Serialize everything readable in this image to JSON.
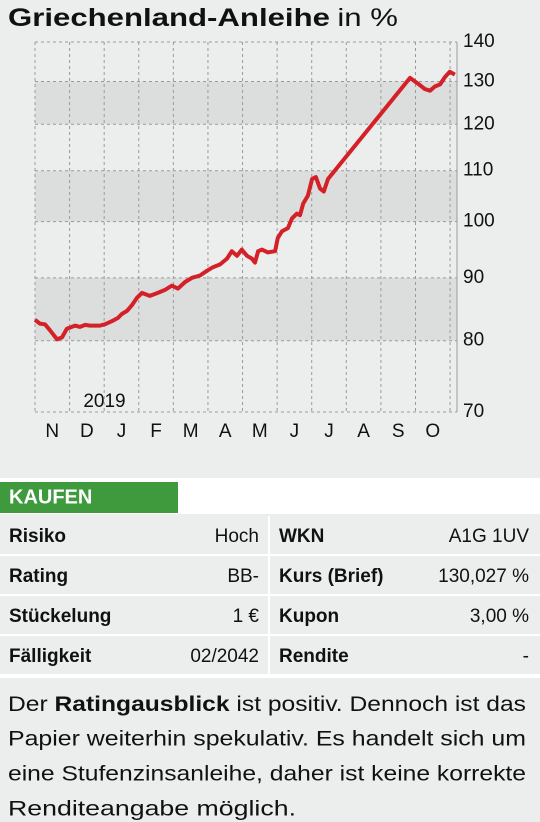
{
  "chart_data": {
    "type": "line",
    "title": "Griechenland-Anleihe",
    "title_unit": "in %",
    "year_label": "2019",
    "x": [
      0,
      0.14,
      0.29,
      0.43,
      0.64,
      0.78,
      0.92,
      1.16,
      1.3,
      1.45,
      1.59,
      1.88,
      2.02,
      2.23,
      2.4,
      2.51,
      2.66,
      2.8,
      2.95,
      3.09,
      3.32,
      3.55,
      3.76,
      3.96,
      4.13,
      4.34,
      4.54,
      4.77,
      4.97,
      5.14,
      5.35,
      5.55,
      5.69,
      5.84,
      5.98,
      6.13,
      6.27,
      6.36,
      6.45,
      6.56,
      6.73,
      6.94,
      7.02,
      7.14,
      7.31,
      7.43,
      7.57,
      7.66,
      7.75,
      7.89,
      8.01,
      8.12,
      8.24,
      8.35,
      8.47,
      10.84,
      11.07,
      11.27,
      11.42,
      11.56,
      11.71,
      11.85,
      11.99,
      12.14
    ],
    "series": [
      {
        "color": "#d42027",
        "values": [
          83.2,
          82.6,
          82.5,
          81.6,
          80.2,
          80.5,
          81.8,
          82.3,
          82.1,
          82.4,
          82.3,
          82.3,
          82.5,
          83,
          83.5,
          84.1,
          84.6,
          85.5,
          86.7,
          87.5,
          87,
          87.5,
          88,
          88.7,
          88.2,
          89.3,
          90,
          90.4,
          91.2,
          91.8,
          92.3,
          93.3,
          94.6,
          93.8,
          94.9,
          93.8,
          93.3,
          92.6,
          94.6,
          94.9,
          94.4,
          94.6,
          97,
          98.2,
          98.8,
          100.6,
          101.5,
          101.2,
          103.4,
          105,
          108.3,
          108.7,
          106.4,
          105.8,
          108.3,
          130.9,
          129.5,
          128.2,
          127.8,
          128.8,
          129.3,
          131.1,
          132.4,
          131.7
        ]
      }
    ],
    "xlim": [
      0,
      12.2
    ],
    "xticks": [
      {
        "value": 0.5,
        "label": "N"
      },
      {
        "value": 1.5,
        "label": "D"
      },
      {
        "value": 2.5,
        "label": "J"
      },
      {
        "value": 3.5,
        "label": "F"
      },
      {
        "value": 4.5,
        "label": "M"
      },
      {
        "value": 5.5,
        "label": "A"
      },
      {
        "value": 6.5,
        "label": "M"
      },
      {
        "value": 7.5,
        "label": "J"
      },
      {
        "value": 8.5,
        "label": "J"
      },
      {
        "value": 9.5,
        "label": "A"
      },
      {
        "value": 10.5,
        "label": "S"
      },
      {
        "value": 11.5,
        "label": "O"
      }
    ],
    "ylim": [
      70,
      140
    ],
    "yticks": [
      70,
      80,
      90,
      100,
      110,
      120,
      130,
      140
    ],
    "log": true,
    "grid": true,
    "bands": true
  },
  "table": {
    "header": "KAUFEN",
    "rows": [
      [
        "Risiko",
        "Hoch",
        "WKN",
        "A1G 1UV"
      ],
      [
        "Rating",
        "BB-",
        "Kurs (Brief)",
        "130,027 %"
      ],
      [
        "Stückelung",
        "1 €",
        "Kupon",
        "3,00 %"
      ],
      [
        "Fälligkeit",
        "02/2042",
        "Rendite",
        "-"
      ]
    ]
  },
  "note": {
    "before": "Der ",
    "bold": "Ratingausblick",
    "after": " ist positiv. Dennoch ist das",
    "lines": [
      "Papier weiterhin spekulativ. Es handelt sich um",
      "eine Stufenzinsanleihe, daher ist keine korrekte",
      "Renditeangabe möglich."
    ]
  }
}
